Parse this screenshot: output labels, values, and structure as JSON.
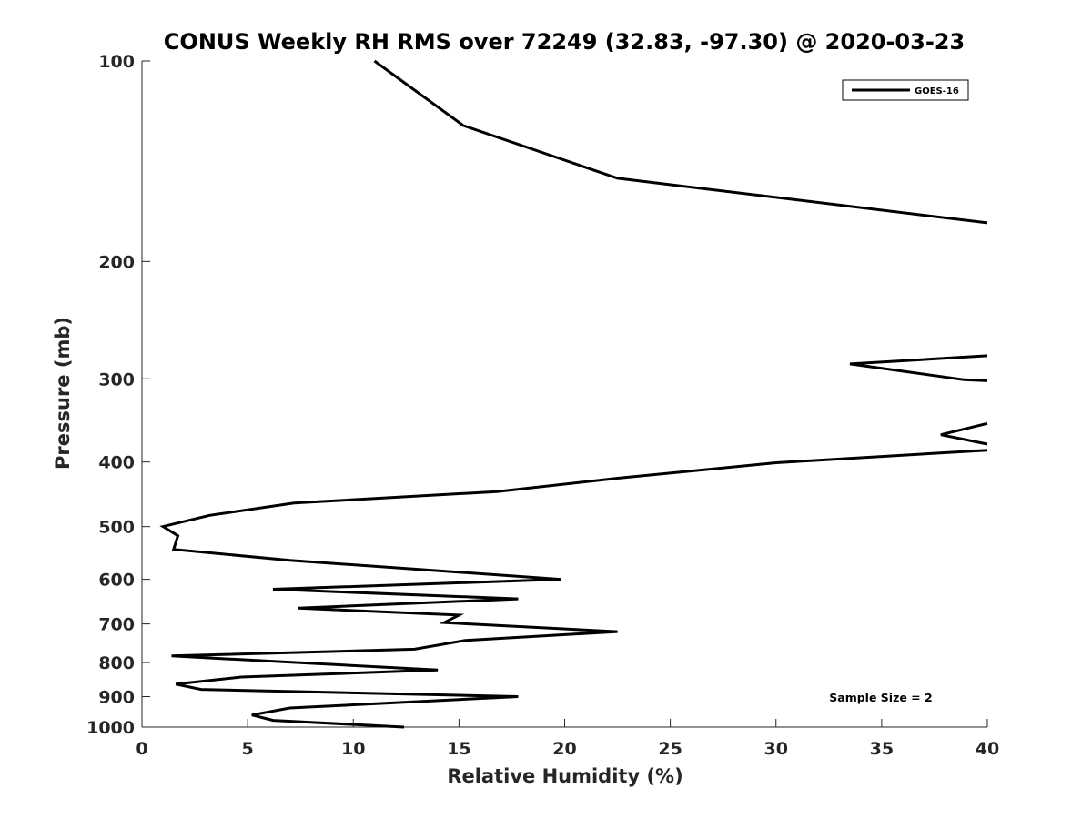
{
  "chart_data": {
    "type": "line",
    "title": "CONUS Weekly RH RMS over 72249 (32.83, -97.30) @ 2020-03-23",
    "xlabel": "Relative Humidity (%)",
    "ylabel": "Pressure (mb)",
    "xlim": [
      0,
      40
    ],
    "ylim": [
      100,
      1000
    ],
    "y_scale": "log",
    "y_reversed": true,
    "grid": false,
    "legend_position": "top-right",
    "x_ticks": [
      "0",
      "5",
      "10",
      "15",
      "20",
      "25",
      "30",
      "35",
      "40"
    ],
    "y_ticks": [
      "100",
      "200",
      "300",
      "400",
      "500",
      "600",
      "700",
      "800",
      "900",
      "1000"
    ],
    "annotation": "Sample Size = 2",
    "series": [
      {
        "name": "GOES-16",
        "color": "#000000",
        "segments": [
          [
            [
              11.0,
              100
            ],
            [
              15.2,
              125
            ],
            [
              22.5,
              150
            ],
            [
              40.0,
              175
            ]
          ],
          [
            [
              40.0,
              277
            ],
            [
              33.5,
              285
            ],
            [
              38.9,
              301
            ],
            [
              40.0,
              302
            ]
          ],
          [
            [
              40.0,
              350
            ],
            [
              37.8,
              364
            ],
            [
              40.0,
              376
            ]
          ],
          [
            [
              40.0,
              384
            ],
            [
              30.0,
              401
            ],
            [
              22.5,
              423
            ],
            [
              16.8,
              443
            ],
            [
              7.2,
              461
            ],
            [
              3.2,
              481
            ],
            [
              1.0,
              500
            ],
            [
              1.7,
              516
            ],
            [
              1.5,
              541
            ],
            [
              7.0,
              562
            ],
            [
              19.8,
              600
            ],
            [
              6.2,
              621
            ],
            [
              17.8,
              642
            ],
            [
              7.4,
              663
            ],
            [
              15.0,
              679
            ],
            [
              14.3,
              697
            ],
            [
              22.5,
              719
            ],
            [
              15.3,
              741
            ],
            [
              12.9,
              764
            ],
            [
              1.4,
              782
            ],
            [
              14.0,
              821
            ],
            [
              4.7,
              841
            ],
            [
              1.6,
              862
            ],
            [
              2.8,
              878
            ],
            [
              17.8,
              900
            ],
            [
              7.0,
              936
            ],
            [
              5.2,
              959
            ],
            [
              6.2,
              977
            ],
            [
              12.4,
              1000
            ]
          ]
        ]
      }
    ]
  }
}
